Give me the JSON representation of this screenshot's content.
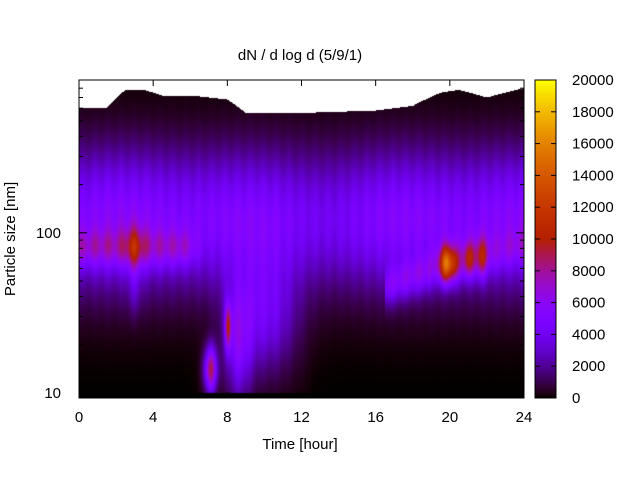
{
  "chart_data": {
    "type": "heatmap",
    "title": "dN / d log d (5/9/1)",
    "xlabel": "Time [hour]",
    "ylabel": "Particle size [nm]",
    "xlim": [
      0,
      24
    ],
    "ylim_nm": [
      9.3,
      900
    ],
    "y_scale": "log",
    "x_ticks": [
      0,
      4,
      8,
      12,
      16,
      20,
      24
    ],
    "y_ticks": [
      {
        "value": 10,
        "label": "10"
      },
      {
        "value": 100,
        "label": "100"
      }
    ],
    "colorbar": {
      "range": [
        0,
        20000
      ],
      "ticks": [
        0,
        2000,
        4000,
        6000,
        8000,
        10000,
        12000,
        14000,
        16000,
        18000,
        20000
      ],
      "colormap": "gnuplot-rgbformulae-7-5-15",
      "colors": [
        "#000000",
        "#5a00c8",
        "#9a00ff",
        "#d8005a",
        "#ff6a00",
        "#ffcc00",
        "#ffff00"
      ]
    },
    "background_concentration": 5000,
    "features": [
      {
        "name": "nucleation-burst",
        "time": [
          6.8,
          7.4
        ],
        "size_nm": [
          10,
          20
        ],
        "peak": 11000
      },
      {
        "name": "morning-mode",
        "time": [
          8.0,
          8.1
        ],
        "size_nm": [
          22,
          30
        ],
        "peak": 11500
      },
      {
        "name": "evening-accumulation-mode",
        "time": [
          19.5,
          20.3
        ],
        "size_nm": [
          60,
          70
        ],
        "peak": 17000
      },
      {
        "name": "evening-secondary-peaks",
        "time": [
          21.0,
          22.0
        ],
        "size_nm": [
          60,
          80
        ],
        "peak": 11000
      },
      {
        "name": "early-morning-mode",
        "time": [
          2.8,
          3.2
        ],
        "size_nm": [
          70,
          100
        ],
        "peak": 9500
      }
    ],
    "upper_size_limit_nm": [
      [
        0,
        600
      ],
      [
        1.5,
        600
      ],
      [
        2.5,
        780
      ],
      [
        3.5,
        780
      ],
      [
        4.5,
        720
      ],
      [
        6,
        720
      ],
      [
        8,
        680
      ],
      [
        9,
        560
      ],
      [
        12,
        560
      ],
      [
        16,
        580
      ],
      [
        18,
        620
      ],
      [
        19.5,
        750
      ],
      [
        20.5,
        780
      ],
      [
        22,
        700
      ],
      [
        24,
        800
      ]
    ]
  }
}
